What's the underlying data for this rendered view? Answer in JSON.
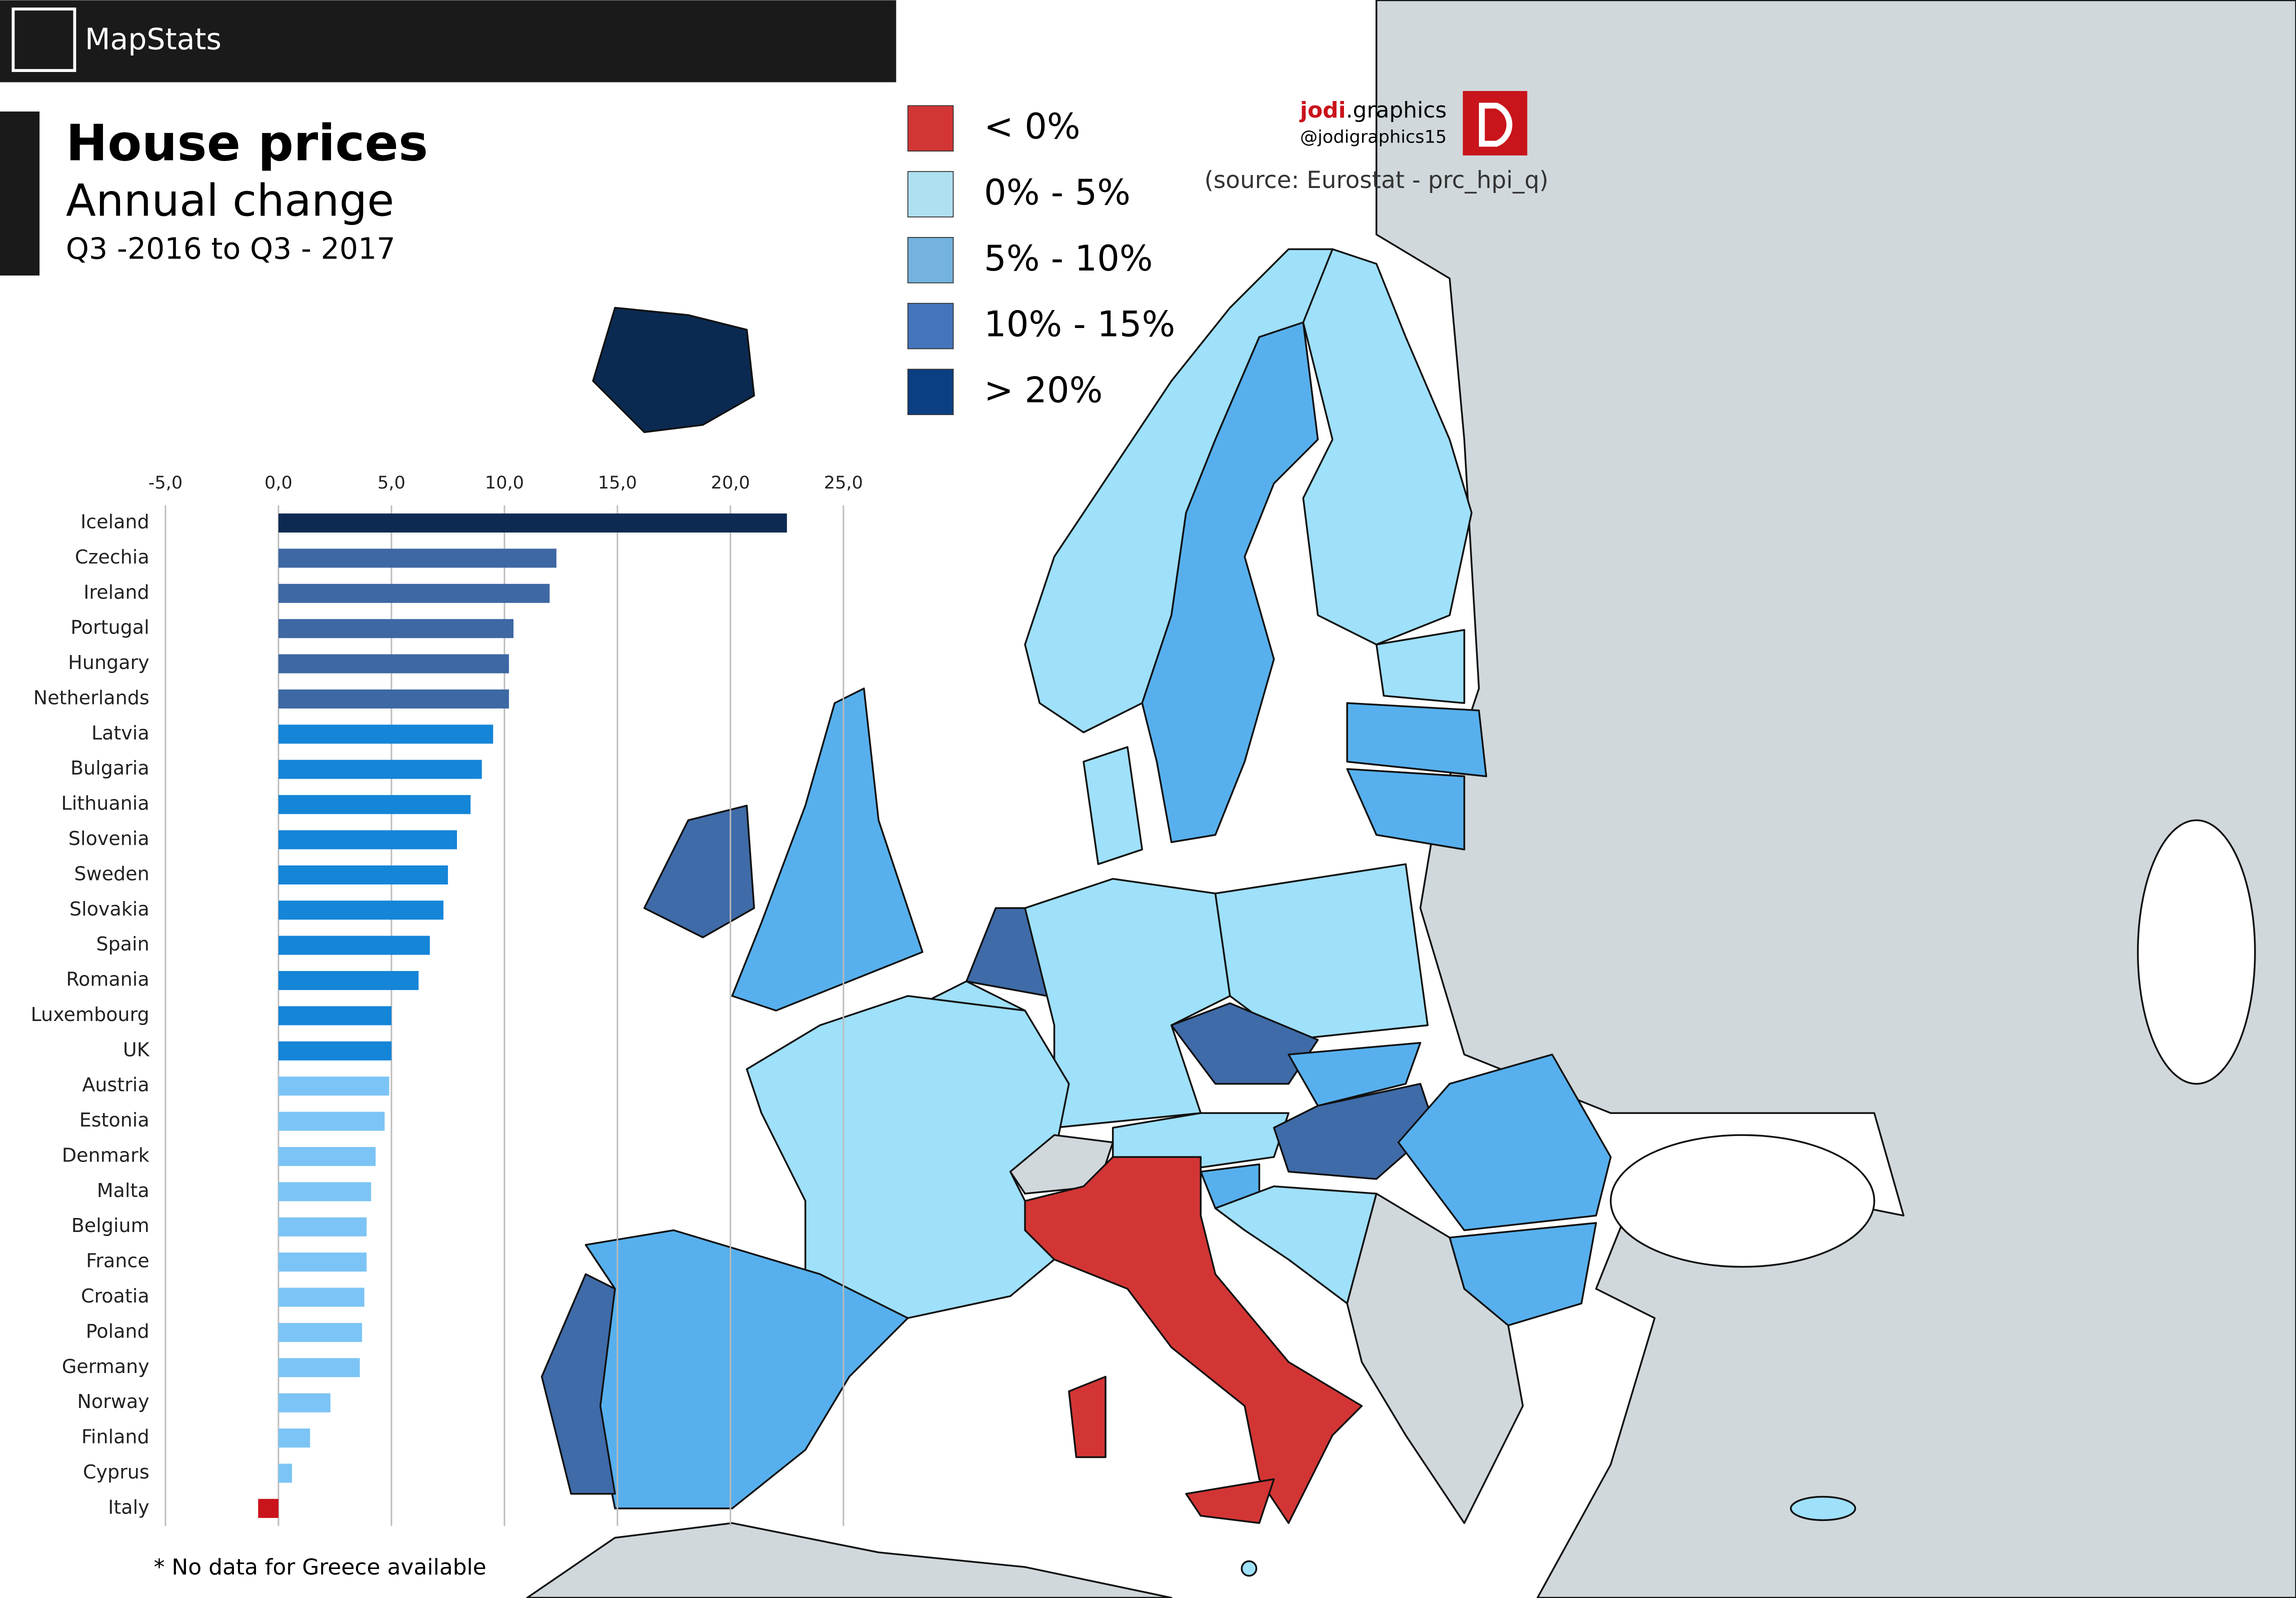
{
  "header": {
    "brand": "MapStats"
  },
  "title": "House prices",
  "subtitle": "Annual change",
  "period": "Q3 -2016 to Q3 - 2017",
  "credit": {
    "name": "jodi",
    "suffix": ".graphics",
    "handle": "@jodigraphics15",
    "source": "(source: Eurostat - prc_hpi_q)"
  },
  "legend": [
    {
      "label": "< 0%",
      "color": "#d33535"
    },
    {
      "label": "0% - 5%",
      "color": "#aee0f2"
    },
    {
      "label": "5% - 10%",
      "color": "#74b3e0"
    },
    {
      "label": "10% - 15%",
      "color": "#4474bc"
    },
    {
      "label": "> 20%",
      "color": "#0b3f82"
    }
  ],
  "chart_data": {
    "type": "bar",
    "orientation": "horizontal",
    "categories": [
      "Iceland",
      "Czechia",
      "Ireland",
      "Portugal",
      "Hungary",
      "Netherlands",
      "Latvia",
      "Bulgaria",
      "Lithuania",
      "Slovenia",
      "Sweden",
      "Slovakia",
      "Spain",
      "Romania",
      "Luxembourg",
      "UK",
      "Austria",
      "Estonia",
      "Denmark",
      "Malta",
      "Belgium",
      "France",
      "Croatia",
      "Poland",
      "Germany",
      "Norway",
      "Finland",
      "Cyprus",
      "Italy"
    ],
    "values": [
      22.5,
      12.3,
      12.0,
      10.4,
      10.2,
      10.2,
      9.5,
      9.0,
      8.5,
      7.9,
      7.5,
      7.3,
      6.7,
      6.2,
      5.0,
      5.0,
      4.9,
      4.7,
      4.3,
      4.1,
      3.9,
      3.9,
      3.8,
      3.7,
      3.6,
      2.3,
      1.4,
      0.6,
      -0.9
    ],
    "colors": [
      "#0d2a52",
      "#3e68a3",
      "#3e68a3",
      "#3e68a3",
      "#3e68a3",
      "#3e68a3",
      "#1585d8",
      "#1585d8",
      "#1585d8",
      "#1585d8",
      "#1585d8",
      "#1585d8",
      "#1585d8",
      "#1585d8",
      "#1585d8",
      "#1585d8",
      "#7cc4f5",
      "#7cc4f5",
      "#7cc4f5",
      "#7cc4f5",
      "#7cc4f5",
      "#7cc4f5",
      "#7cc4f5",
      "#7cc4f5",
      "#7cc4f5",
      "#7cc4f5",
      "#7cc4f5",
      "#7cc4f5",
      "#c9141b"
    ],
    "xlim": [
      -5,
      25
    ],
    "xticks": [
      {
        "value": -5,
        "label": "-5,0"
      },
      {
        "value": 0,
        "label": "0,0"
      },
      {
        "value": 5,
        "label": "5,0"
      },
      {
        "value": 10,
        "label": "10,0"
      },
      {
        "value": 15,
        "label": "15,0"
      },
      {
        "value": 20,
        "label": "20,0"
      },
      {
        "value": 25,
        "label": "25,0"
      }
    ],
    "grid": true
  },
  "footnote": "* No data for Greece available"
}
